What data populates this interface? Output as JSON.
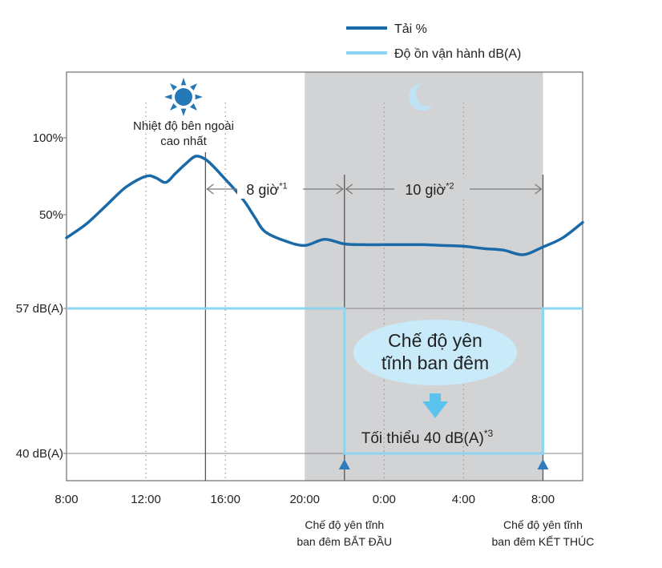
{
  "chart_data": {
    "type": "line",
    "title": "",
    "xlabel": "",
    "ylabel": "",
    "x_ticks": [
      "8:00",
      "12:00",
      "16:00",
      "20:00",
      "0:00",
      "4:00",
      "8:00"
    ],
    "x_range_hours": [
      8,
      34
    ],
    "y_ticks_load": [
      "100%",
      "50%"
    ],
    "y_ticks_noise": [
      "57 dB(A)",
      "40 dB(A)"
    ],
    "grid": "vertical dotted",
    "legend_position": "top-right",
    "series": [
      {
        "name": "Tải %",
        "color": "#1a6aa8",
        "x": [
          8,
          9,
          10,
          11,
          12,
          12.5,
          13,
          13.5,
          14,
          14.5,
          15,
          15.5,
          16,
          16.5,
          17,
          17.5,
          18,
          19,
          20,
          21,
          22,
          23,
          24,
          25,
          26,
          27,
          28,
          29,
          30,
          31,
          32,
          33,
          34
        ],
        "y": [
          35,
          44,
          56,
          68,
          75,
          74,
          71,
          77,
          83,
          88,
          86,
          80,
          73,
          66,
          58,
          48,
          39,
          33,
          30,
          34,
          31,
          30.5,
          30.5,
          30.5,
          30.5,
          30,
          29.5,
          28,
          27,
          24,
          29,
          35,
          45
        ]
      },
      {
        "name": "Độ ồn vận hành dB(A)",
        "color": "#8dd4f1",
        "x": [
          8,
          22,
          22,
          32,
          32,
          34
        ],
        "y": [
          57,
          57,
          40,
          40,
          57,
          57
        ]
      }
    ],
    "night_band_hours": [
      20,
      32
    ],
    "annotations": {
      "peak_label_1": "Nhiệt độ bên ngoài",
      "peak_label_2": "cao nhất",
      "span1_label": "8 giờ",
      "span1_sup": "*1",
      "span2_label": "10 giờ",
      "span2_sup": "*2",
      "quiet_mode_line1": "Chế độ yên",
      "quiet_mode_line2": "tĩnh ban đêm",
      "min_label": "Tối thiểu 40 dB(A)",
      "min_sup": "*3",
      "start_label_1": "Chế độ yên tĩnh",
      "start_label_2": "ban đêm BẮT ĐẦU",
      "end_label_1": "Chế độ yên tĩnh",
      "end_label_2": "ban đêm KẾT THÚC"
    },
    "marker_hours": {
      "peak": 15,
      "start": 22,
      "end": 32
    },
    "colors": {
      "load": "#1a6aa8",
      "noise": "#8dd4f1",
      "night_band": "#d2d3d5",
      "bubble": "#c9ebf9",
      "arrow": "#5bc3ee",
      "sun": "#2478b8",
      "moon": "#bfe3f6",
      "marker": "#2f7bbf"
    },
    "icons": {
      "sun": "sun-icon",
      "moon": "moon-icon",
      "down_arrow": "down-arrow-icon",
      "marker": "triangle-marker-icon"
    }
  }
}
